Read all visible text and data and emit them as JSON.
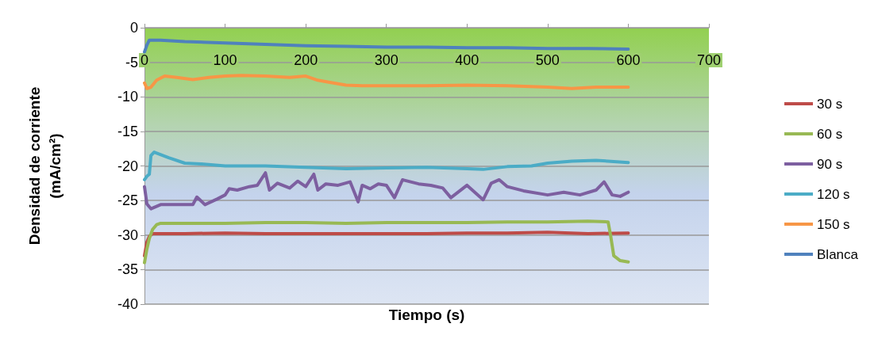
{
  "chart_data": {
    "type": "line",
    "xlabel": "Tiempo (s)",
    "ylabel": "Densidad de corriente\n(mA/cm²)",
    "xlim": [
      0,
      700
    ],
    "xticks": [
      0,
      100,
      200,
      300,
      400,
      500,
      600,
      700
    ],
    "ylim": [
      -40,
      0
    ],
    "yticks": [
      -40,
      -35,
      -30,
      -25,
      -20,
      -15,
      -10,
      -5,
      0
    ],
    "grid": "y",
    "legend": "right",
    "marker": "none",
    "line_style": "solid",
    "series": [
      {
        "name": "30 s",
        "color": "#be4b48",
        "x": [
          0,
          3,
          6,
          10,
          50,
          100,
          150,
          200,
          250,
          300,
          350,
          400,
          450,
          500,
          550,
          600
        ],
        "values": [
          -33,
          -31,
          -30.2,
          -29.8,
          -29.8,
          -29.7,
          -29.8,
          -29.8,
          -29.8,
          -29.8,
          -29.8,
          -29.7,
          -29.7,
          -29.6,
          -29.8,
          -29.7
        ]
      },
      {
        "name": "60 s",
        "color": "#98b954",
        "x": [
          0,
          3,
          6,
          10,
          15,
          20,
          50,
          100,
          150,
          200,
          250,
          300,
          350,
          400,
          450,
          500,
          550,
          575,
          578,
          582,
          590,
          600
        ],
        "values": [
          -34,
          -32,
          -30.5,
          -29.2,
          -28.5,
          -28.3,
          -28.3,
          -28.3,
          -28.2,
          -28.2,
          -28.3,
          -28.2,
          -28.2,
          -28.2,
          -28.1,
          -28.1,
          -28,
          -28.1,
          -30,
          -33,
          -33.7,
          -33.9
        ]
      },
      {
        "name": "90 s",
        "color": "#7d5fa0",
        "x": [
          0,
          3,
          8,
          20,
          40,
          60,
          65,
          75,
          90,
          100,
          105,
          115,
          130,
          140,
          150,
          155,
          165,
          180,
          190,
          200,
          210,
          215,
          225,
          240,
          255,
          265,
          270,
          280,
          290,
          300,
          310,
          320,
          340,
          355,
          370,
          380,
          400,
          420,
          430,
          440,
          450,
          470,
          500,
          520,
          540,
          560,
          570,
          580,
          590,
          600
        ],
        "values": [
          -23,
          -25.5,
          -26.2,
          -25.6,
          -25.6,
          -25.6,
          -24.5,
          -25.6,
          -24.8,
          -24.2,
          -23.3,
          -23.5,
          -23,
          -22.8,
          -21,
          -23.5,
          -22.5,
          -23.2,
          -22.2,
          -23,
          -21.2,
          -23.5,
          -22.6,
          -22.8,
          -22.3,
          -25.2,
          -22.8,
          -23.3,
          -22.6,
          -22.8,
          -24.6,
          -22,
          -22.6,
          -22.8,
          -23.2,
          -24.6,
          -22.8,
          -24.9,
          -22.5,
          -22,
          -23,
          -23.6,
          -24.2,
          -23.8,
          -24.2,
          -23.5,
          -22.3,
          -24.2,
          -24.4,
          -23.8
        ]
      },
      {
        "name": "120 s",
        "color": "#4bacc6",
        "x": [
          0,
          3,
          6,
          8,
          12,
          30,
          50,
          70,
          100,
          150,
          200,
          250,
          300,
          350,
          400,
          420,
          450,
          480,
          500,
          530,
          560,
          600
        ],
        "values": [
          -22,
          -21.5,
          -21.2,
          -18.5,
          -18,
          -18.8,
          -19.6,
          -19.7,
          -20,
          -20,
          -20.2,
          -20.4,
          -20.3,
          -20.2,
          -20.4,
          -20.5,
          -20.1,
          -20,
          -19.6,
          -19.3,
          -19.2,
          -19.5
        ]
      },
      {
        "name": "150 s",
        "color": "#f79646",
        "x": [
          0,
          3,
          8,
          15,
          25,
          40,
          60,
          80,
          100,
          120,
          150,
          180,
          200,
          215,
          230,
          250,
          270,
          300,
          350,
          400,
          450,
          500,
          530,
          560,
          600
        ],
        "values": [
          -8,
          -8.8,
          -8.6,
          -7.6,
          -7,
          -7.2,
          -7.5,
          -7.2,
          -7,
          -6.9,
          -7,
          -7.2,
          -7,
          -7.6,
          -7.9,
          -8.3,
          -8.4,
          -8.4,
          -8.4,
          -8.3,
          -8.4,
          -8.6,
          -8.8,
          -8.6,
          -8.6
        ]
      },
      {
        "name": "Blanca",
        "color": "#4f81bd",
        "x": [
          0,
          3,
          6,
          20,
          50,
          100,
          150,
          200,
          250,
          300,
          350,
          400,
          450,
          500,
          550,
          600
        ],
        "values": [
          -3.5,
          -2.5,
          -1.8,
          -1.8,
          -2,
          -2.2,
          -2.4,
          -2.6,
          -2.7,
          -2.8,
          -2.8,
          -2.9,
          -2.9,
          -3,
          -3,
          -3.1
        ]
      }
    ]
  }
}
